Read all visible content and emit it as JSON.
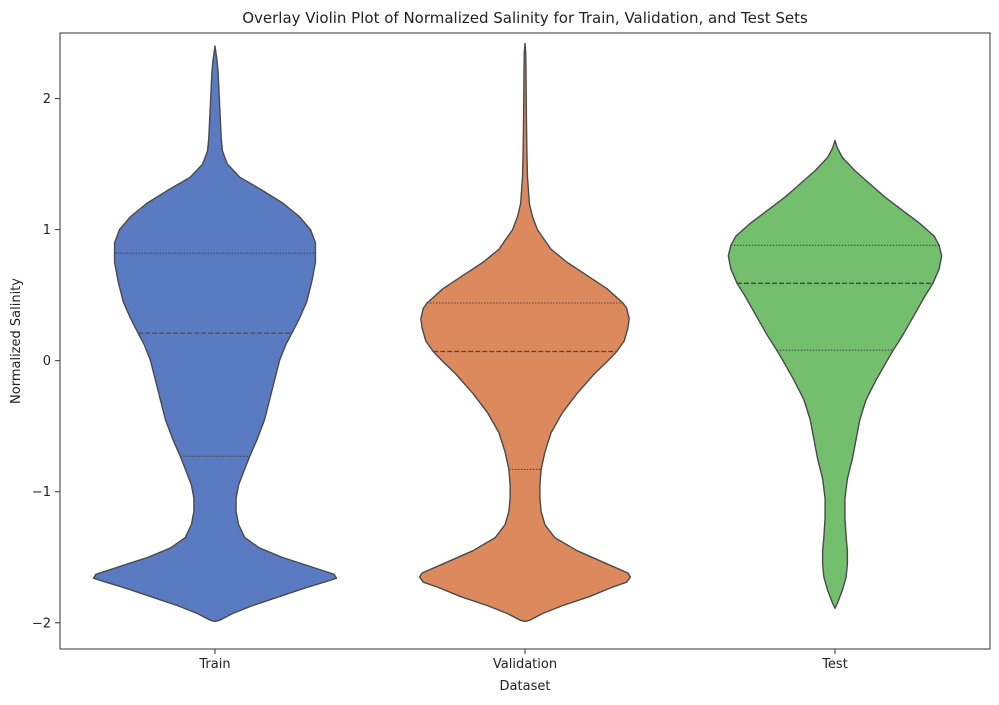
{
  "chart_data": {
    "type": "violin",
    "title": "Overlay Violin Plot of Normalized Salinity for Train, Validation, and Test Sets",
    "xlabel": "Dataset",
    "ylabel": "Normalized Salinity",
    "categories": [
      "Train",
      "Validation",
      "Test"
    ],
    "ylim": [
      -2.2,
      2.5
    ],
    "yticks": [
      -2,
      -1,
      0,
      1,
      2
    ],
    "ytick_labels": [
      "−2",
      "−1",
      "0",
      "1",
      "2"
    ],
    "grid": false,
    "legend": false,
    "inner": "quartile",
    "colors": [
      "#5A7BC2",
      "#DB895D",
      "#73BF6E"
    ],
    "outline_color": "#4a4a4a",
    "series": [
      {
        "category": "Train",
        "color": "#5A7BC2",
        "quartiles": [
          -0.73,
          0.21,
          0.82
        ],
        "profile": [
          [
            -1.99,
            0.0
          ],
          [
            -1.98,
            0.04
          ],
          [
            -1.93,
            0.14
          ],
          [
            -1.87,
            0.3
          ],
          [
            -1.8,
            0.52
          ],
          [
            -1.73,
            0.74
          ],
          [
            -1.69,
            0.88
          ],
          [
            -1.66,
            0.98
          ],
          [
            -1.63,
            0.96
          ],
          [
            -1.58,
            0.8
          ],
          [
            -1.5,
            0.54
          ],
          [
            -1.43,
            0.36
          ],
          [
            -1.35,
            0.24
          ],
          [
            -1.25,
            0.19
          ],
          [
            -1.15,
            0.17
          ],
          [
            -1.05,
            0.17
          ],
          [
            -0.95,
            0.19
          ],
          [
            -0.85,
            0.23
          ],
          [
            -0.73,
            0.28
          ],
          [
            -0.6,
            0.34
          ],
          [
            -0.45,
            0.4
          ],
          [
            -0.3,
            0.44
          ],
          [
            -0.15,
            0.48
          ],
          [
            0.0,
            0.52
          ],
          [
            0.12,
            0.57
          ],
          [
            0.21,
            0.62
          ],
          [
            0.32,
            0.68
          ],
          [
            0.45,
            0.74
          ],
          [
            0.6,
            0.78
          ],
          [
            0.75,
            0.81
          ],
          [
            0.9,
            0.81
          ],
          [
            1.0,
            0.77
          ],
          [
            1.1,
            0.68
          ],
          [
            1.2,
            0.55
          ],
          [
            1.3,
            0.38
          ],
          [
            1.4,
            0.2
          ],
          [
            1.5,
            0.1
          ],
          [
            1.6,
            0.06
          ],
          [
            1.7,
            0.05
          ],
          [
            1.8,
            0.045
          ],
          [
            1.9,
            0.04
          ],
          [
            2.0,
            0.035
          ],
          [
            2.1,
            0.03
          ],
          [
            2.2,
            0.025
          ],
          [
            2.3,
            0.015
          ],
          [
            2.4,
            0.0
          ]
        ]
      },
      {
        "category": "Validation",
        "color": "#DB895D",
        "quartiles": [
          -0.83,
          0.07,
          0.44
        ],
        "profile": [
          [
            -1.99,
            0.0
          ],
          [
            -1.98,
            0.04
          ],
          [
            -1.93,
            0.14
          ],
          [
            -1.87,
            0.3
          ],
          [
            -1.8,
            0.52
          ],
          [
            -1.73,
            0.7
          ],
          [
            -1.69,
            0.82
          ],
          [
            -1.65,
            0.85
          ],
          [
            -1.62,
            0.83
          ],
          [
            -1.55,
            0.66
          ],
          [
            -1.45,
            0.42
          ],
          [
            -1.35,
            0.24
          ],
          [
            -1.25,
            0.16
          ],
          [
            -1.15,
            0.13
          ],
          [
            -1.05,
            0.12
          ],
          [
            -0.95,
            0.12
          ],
          [
            -0.83,
            0.13
          ],
          [
            -0.7,
            0.16
          ],
          [
            -0.55,
            0.21
          ],
          [
            -0.4,
            0.3
          ],
          [
            -0.25,
            0.42
          ],
          [
            -0.1,
            0.56
          ],
          [
            0.0,
            0.67
          ],
          [
            0.07,
            0.74
          ],
          [
            0.15,
            0.8
          ],
          [
            0.25,
            0.83
          ],
          [
            0.32,
            0.84
          ],
          [
            0.4,
            0.82
          ],
          [
            0.44,
            0.79
          ],
          [
            0.55,
            0.66
          ],
          [
            0.65,
            0.5
          ],
          [
            0.75,
            0.34
          ],
          [
            0.85,
            0.21
          ],
          [
            1.0,
            0.1
          ],
          [
            1.1,
            0.06
          ],
          [
            1.2,
            0.035
          ],
          [
            1.4,
            0.02
          ],
          [
            1.6,
            0.015
          ],
          [
            1.8,
            0.012
          ],
          [
            2.0,
            0.01
          ],
          [
            2.2,
            0.008
          ],
          [
            2.35,
            0.006
          ],
          [
            2.42,
            0.0
          ]
        ]
      },
      {
        "category": "Test",
        "color": "#73BF6E",
        "quartiles": [
          0.08,
          0.59,
          0.88
        ],
        "profile": [
          [
            -1.89,
            0.0
          ],
          [
            -1.85,
            0.02
          ],
          [
            -1.75,
            0.06
          ],
          [
            -1.65,
            0.09
          ],
          [
            -1.55,
            0.1
          ],
          [
            -1.45,
            0.1
          ],
          [
            -1.35,
            0.09
          ],
          [
            -1.2,
            0.08
          ],
          [
            -1.05,
            0.08
          ],
          [
            -0.9,
            0.1
          ],
          [
            -0.75,
            0.14
          ],
          [
            -0.6,
            0.17
          ],
          [
            -0.45,
            0.2
          ],
          [
            -0.3,
            0.25
          ],
          [
            -0.15,
            0.33
          ],
          [
            0.0,
            0.42
          ],
          [
            0.08,
            0.47
          ],
          [
            0.2,
            0.55
          ],
          [
            0.35,
            0.64
          ],
          [
            0.5,
            0.73
          ],
          [
            0.59,
            0.79
          ],
          [
            0.7,
            0.84
          ],
          [
            0.8,
            0.86
          ],
          [
            0.88,
            0.84
          ],
          [
            0.95,
            0.8
          ],
          [
            1.05,
            0.68
          ],
          [
            1.15,
            0.54
          ],
          [
            1.25,
            0.4
          ],
          [
            1.35,
            0.28
          ],
          [
            1.45,
            0.16
          ],
          [
            1.55,
            0.06
          ],
          [
            1.62,
            0.02
          ],
          [
            1.68,
            0.0
          ]
        ]
      }
    ]
  }
}
